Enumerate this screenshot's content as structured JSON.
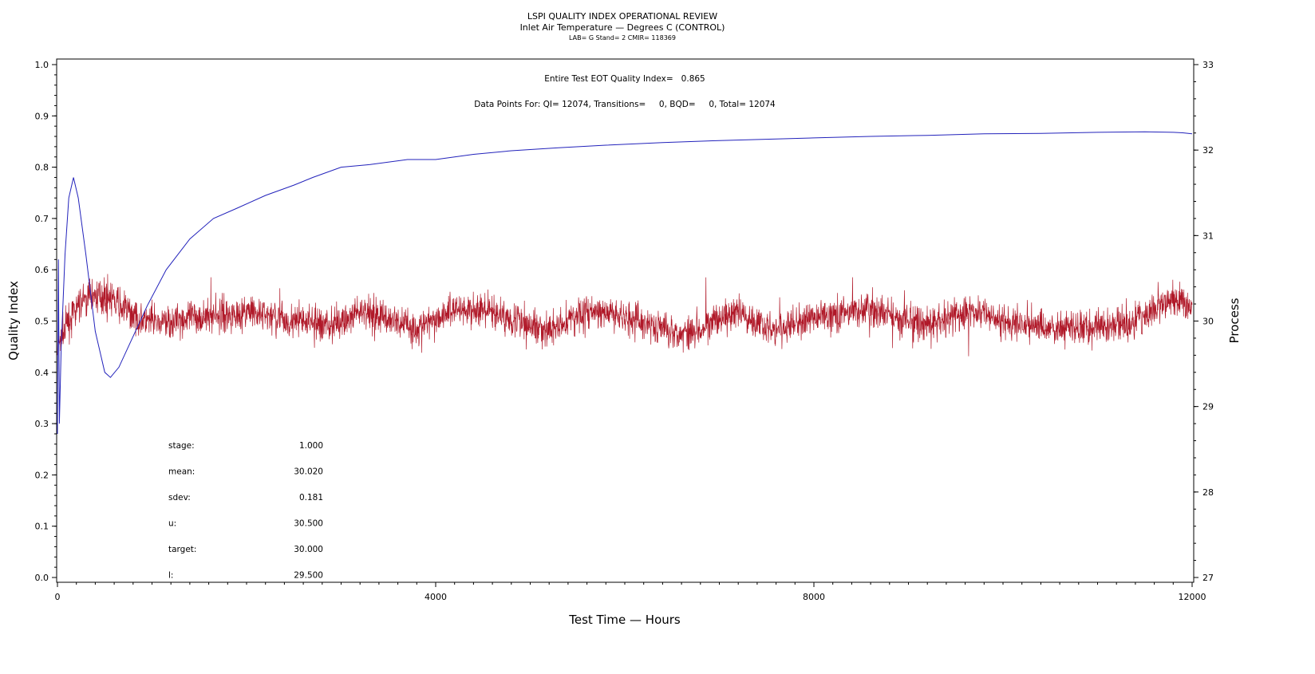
{
  "chart_data": {
    "type": "line",
    "title": "LSPI QUALITY INDEX OPERATIONAL REVIEW",
    "subtitle": "Inlet Air Temperature — Degrees C (CONTROL)",
    "subsubtitle": "LAB= G Stand= 2 CMIR= 118369",
    "annotations": {
      "eot": "Entire Test EOT Quality Index=   0.865",
      "points": "Data Points For: QI= 12074, Transitions=     0, BQD=     0, Total= 12074"
    },
    "xlabel": "Test Time — Hours",
    "ylabel": "Quality Index",
    "y2label": "Process",
    "xlim": [
      0,
      12000
    ],
    "ylim": [
      0,
      1
    ],
    "y2lim": [
      27,
      33
    ],
    "xticks": [
      "0",
      "4000",
      "8000",
      "12000"
    ],
    "yticks": [
      "0.0",
      "0.1",
      "0.2",
      "0.3",
      "0.4",
      "0.5",
      "0.6",
      "0.7",
      "0.8",
      "0.9",
      "1.0"
    ],
    "y2ticks": [
      "27",
      "28",
      "29",
      "30",
      "31",
      "32",
      "33"
    ],
    "series": [
      {
        "name": "Quality Index",
        "axis": "left",
        "color": "#2222bb",
        "x": [
          0,
          10,
          20,
          40,
          80,
          120,
          170,
          220,
          300,
          400,
          500,
          560,
          650,
          800,
          950,
          1150,
          1400,
          1650,
          1900,
          2200,
          2500,
          2700,
          3000,
          3300,
          3700,
          4000,
          4400,
          4800,
          5300,
          5800,
          6400,
          7000,
          7600,
          8000,
          8600,
          9200,
          9800,
          10400,
          11000,
          11500,
          11800,
          11900,
          12000
        ],
        "y": [
          0.28,
          0.62,
          0.3,
          0.45,
          0.63,
          0.74,
          0.78,
          0.74,
          0.63,
          0.48,
          0.4,
          0.39,
          0.41,
          0.47,
          0.53,
          0.6,
          0.66,
          0.7,
          0.72,
          0.745,
          0.765,
          0.78,
          0.8,
          0.805,
          0.815,
          0.815,
          0.825,
          0.832,
          0.838,
          0.843,
          0.848,
          0.852,
          0.855,
          0.857,
          0.86,
          0.862,
          0.865,
          0.866,
          0.868,
          0.869,
          0.868,
          0.867,
          0.865
        ]
      },
      {
        "name": "Process",
        "axis": "right",
        "color": "#b01828",
        "x": [
          0,
          100,
          200,
          350,
          500,
          700,
          900,
          1100,
          1500,
          2000,
          2500,
          2900,
          3300,
          3800,
          4200,
          4600,
          5200,
          5600,
          6000,
          6600,
          7200,
          7600,
          8000,
          8600,
          9200,
          9700,
          10200,
          10800,
          11300,
          11800,
          12000
        ],
        "y": [
          29.7,
          29.95,
          30.15,
          30.3,
          30.3,
          30.15,
          30.0,
          29.98,
          30.05,
          30.1,
          30.0,
          29.95,
          30.12,
          29.9,
          30.15,
          30.1,
          29.88,
          30.12,
          30.05,
          29.85,
          30.1,
          29.88,
          30.05,
          30.12,
          29.95,
          30.12,
          29.95,
          29.92,
          29.95,
          30.25,
          30.2
        ],
        "noise_sdev": 0.181
      }
    ],
    "stats": [
      {
        "label": "stage:",
        "value": "1.000"
      },
      {
        "label": "mean:",
        "value": "30.020"
      },
      {
        "label": "sdev:",
        "value": "0.181"
      },
      {
        "label": "u:",
        "value": "30.500"
      },
      {
        "label": "target:",
        "value": "30.000"
      },
      {
        "label": "l:",
        "value": "29.500"
      }
    ]
  }
}
